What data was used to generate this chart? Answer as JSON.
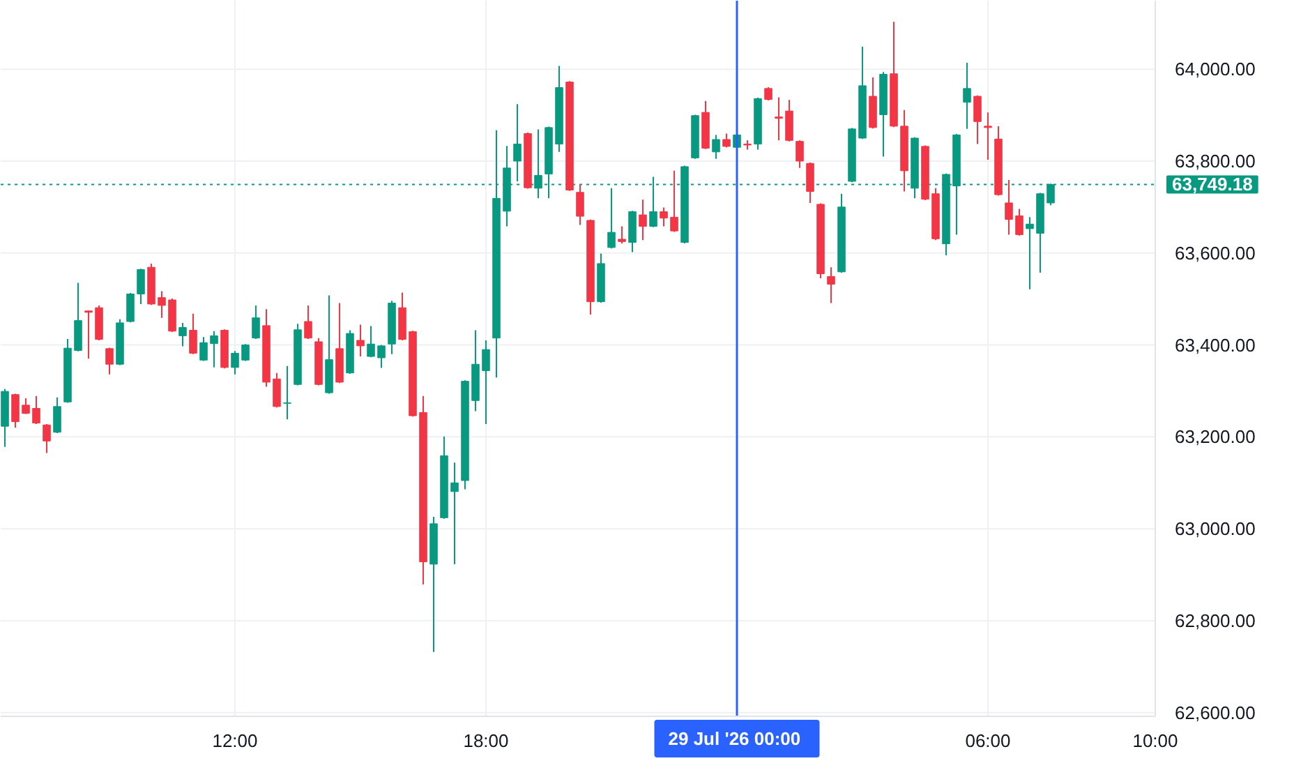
{
  "chart_data": {
    "type": "candlestick",
    "x": [
      "2026-07-28T06:30",
      "2026-07-28T06:45",
      "2026-07-28T07:00",
      "2026-07-28T07:15",
      "2026-07-28T07:30",
      "2026-07-28T07:45",
      "2026-07-28T08:00",
      "2026-07-28T08:15",
      "2026-07-28T08:30",
      "2026-07-28T08:45",
      "2026-07-28T09:00",
      "2026-07-28T09:15",
      "2026-07-28T09:30",
      "2026-07-28T09:45",
      "2026-07-28T10:00",
      "2026-07-28T10:15",
      "2026-07-28T10:30",
      "2026-07-28T10:45",
      "2026-07-28T11:00",
      "2026-07-28T11:15",
      "2026-07-28T11:30",
      "2026-07-28T11:45",
      "2026-07-28T12:00",
      "2026-07-28T12:15",
      "2026-07-28T12:30",
      "2026-07-28T12:45",
      "2026-07-28T13:00",
      "2026-07-28T13:15",
      "2026-07-28T13:30",
      "2026-07-28T13:45",
      "2026-07-28T14:00",
      "2026-07-28T14:15",
      "2026-07-28T14:30",
      "2026-07-28T14:45",
      "2026-07-28T15:00",
      "2026-07-28T15:15",
      "2026-07-28T15:30",
      "2026-07-28T15:45",
      "2026-07-28T16:00",
      "2026-07-28T16:15",
      "2026-07-28T16:30",
      "2026-07-28T16:45",
      "2026-07-28T17:00",
      "2026-07-28T17:15",
      "2026-07-28T17:30",
      "2026-07-28T17:45",
      "2026-07-28T18:00",
      "2026-07-28T18:15",
      "2026-07-28T18:30",
      "2026-07-28T18:45",
      "2026-07-28T19:00",
      "2026-07-28T19:15",
      "2026-07-28T19:30",
      "2026-07-28T19:45",
      "2026-07-28T20:00",
      "2026-07-28T20:15",
      "2026-07-28T20:30",
      "2026-07-28T20:45",
      "2026-07-28T21:00",
      "2026-07-28T21:15",
      "2026-07-28T21:30",
      "2026-07-28T21:45",
      "2026-07-28T22:00",
      "2026-07-28T22:15",
      "2026-07-28T22:30",
      "2026-07-28T22:45",
      "2026-07-28T23:00",
      "2026-07-28T23:15",
      "2026-07-28T23:30",
      "2026-07-28T23:45",
      "2026-07-29T00:00",
      "2026-07-29T00:15",
      "2026-07-29T00:30",
      "2026-07-29T00:45",
      "2026-07-29T01:00",
      "2026-07-29T01:15",
      "2026-07-29T01:30",
      "2026-07-29T01:45",
      "2026-07-29T02:00",
      "2026-07-29T02:15",
      "2026-07-29T02:30",
      "2026-07-29T02:45",
      "2026-07-29T03:00",
      "2026-07-29T03:15",
      "2026-07-29T03:30",
      "2026-07-29T03:45",
      "2026-07-29T04:00",
      "2026-07-29T04:15",
      "2026-07-29T04:30",
      "2026-07-29T04:45",
      "2026-07-29T05:00",
      "2026-07-29T05:15",
      "2026-07-29T05:30",
      "2026-07-29T05:45",
      "2026-07-29T06:00",
      "2026-07-29T06:15",
      "2026-07-29T06:30",
      "2026-07-29T06:45",
      "2026-07-29T07:00",
      "2026-07-29T07:15",
      "2026-07-29T07:30"
    ],
    "ohlc": [
      [
        63223,
        63304,
        63178,
        63299
      ],
      [
        63292,
        63294,
        63220,
        63233
      ],
      [
        63269,
        63284,
        63250,
        63251
      ],
      [
        63262,
        63289,
        63228,
        63230
      ],
      [
        63226,
        63228,
        63165,
        63191
      ],
      [
        63210,
        63286,
        63208,
        63266
      ],
      [
        63276,
        63413,
        63274,
        63393
      ],
      [
        63388,
        63535,
        63386,
        63453
      ],
      [
        63474,
        63475,
        63370,
        63471
      ],
      [
        63481,
        63486,
        63410,
        63412
      ],
      [
        63392,
        63394,
        63336,
        63358
      ],
      [
        63358,
        63456,
        63356,
        63448
      ],
      [
        63451,
        63513,
        63449,
        63511
      ],
      [
        63511,
        63566,
        63489,
        63564
      ],
      [
        63569,
        63577,
        63487,
        63489
      ],
      [
        63503,
        63517,
        63459,
        63486
      ],
      [
        63498,
        63501,
        63428,
        63430
      ],
      [
        63420,
        63448,
        63397,
        63438
      ],
      [
        63432,
        63468,
        63380,
        63382
      ],
      [
        63367,
        63417,
        63365,
        63405
      ],
      [
        63403,
        63430,
        63351,
        63420
      ],
      [
        63432,
        63434,
        63349,
        63351
      ],
      [
        63351,
        63387,
        63336,
        63382
      ],
      [
        63367,
        63402,
        63365,
        63400
      ],
      [
        63415,
        63486,
        63413,
        63459
      ],
      [
        63442,
        63478,
        63309,
        63319
      ],
      [
        63326,
        63339,
        63264,
        63266
      ],
      [
        63273,
        63354,
        63238,
        63274
      ],
      [
        63314,
        63446,
        63312,
        63433
      ],
      [
        63451,
        63486,
        63413,
        63415
      ],
      [
        63407,
        63415,
        63312,
        63314
      ],
      [
        63296,
        63508,
        63294,
        63368
      ],
      [
        63392,
        63491,
        63317,
        63319
      ],
      [
        63339,
        63432,
        63337,
        63425
      ],
      [
        63410,
        63444,
        63375,
        63398
      ],
      [
        63375,
        63441,
        63373,
        63402
      ],
      [
        63372,
        63400,
        63350,
        63398
      ],
      [
        63402,
        63496,
        63380,
        63491
      ],
      [
        63481,
        63514,
        63410,
        63412
      ],
      [
        63429,
        63431,
        63244,
        63246
      ],
      [
        63253,
        63289,
        62879,
        62928
      ],
      [
        62923,
        63026,
        62732,
        63011
      ],
      [
        63024,
        63201,
        63022,
        63159
      ],
      [
        63081,
        63144,
        62923,
        63100
      ],
      [
        63105,
        63323,
        63086,
        63321
      ],
      [
        63279,
        63432,
        63256,
        63358
      ],
      [
        63344,
        63410,
        63228,
        63390
      ],
      [
        63415,
        63867,
        63329,
        63719
      ],
      [
        63691,
        63833,
        63658,
        63785
      ],
      [
        63800,
        63924,
        63756,
        63837
      ],
      [
        63860,
        63862,
        63740,
        63742
      ],
      [
        63741,
        63869,
        63719,
        63769
      ],
      [
        63772,
        63875,
        63719,
        63873
      ],
      [
        63837,
        64007,
        63820,
        63960
      ],
      [
        63972,
        63974,
        63735,
        63737
      ],
      [
        63732,
        63749,
        63661,
        63680
      ],
      [
        63671,
        63673,
        63466,
        63494
      ],
      [
        63494,
        63599,
        63492,
        63577
      ],
      [
        63612,
        63741,
        63610,
        63645
      ],
      [
        63630,
        63658,
        63621,
        63625
      ],
      [
        63623,
        63692,
        63602,
        63690
      ],
      [
        63683,
        63716,
        63628,
        63658
      ],
      [
        63658,
        63766,
        63656,
        63690
      ],
      [
        63690,
        63699,
        63658,
        63676
      ],
      [
        63678,
        63779,
        63646,
        63648
      ],
      [
        63623,
        63790,
        63621,
        63788
      ],
      [
        63807,
        63901,
        63805,
        63899
      ],
      [
        63906,
        63931,
        63826,
        63828
      ],
      [
        63820,
        63857,
        63805,
        63847
      ],
      [
        63847,
        63860,
        63830,
        63832
      ],
      [
        63830,
        63860,
        63828,
        63857
      ],
      [
        63837,
        63845,
        63825,
        63835
      ],
      [
        63837,
        63938,
        63825,
        63936
      ],
      [
        63958,
        63961,
        63932,
        63934
      ],
      [
        63896,
        63939,
        63845,
        63893
      ],
      [
        63909,
        63933,
        63843,
        63845
      ],
      [
        63843,
        63845,
        63785,
        63800
      ],
      [
        63795,
        63797,
        63709,
        63734
      ],
      [
        63706,
        63708,
        63545,
        63555
      ],
      [
        63549,
        63569,
        63491,
        63532
      ],
      [
        63559,
        63729,
        63557,
        63700
      ],
      [
        63756,
        63872,
        63754,
        63870
      ],
      [
        63850,
        64049,
        63848,
        63964
      ],
      [
        63941,
        63982,
        63871,
        63873
      ],
      [
        63901,
        63994,
        63810,
        63989
      ],
      [
        63990,
        64103,
        63874,
        63876
      ],
      [
        63876,
        63911,
        63734,
        63779
      ],
      [
        63741,
        63852,
        63719,
        63850
      ],
      [
        63832,
        63834,
        63715,
        63717
      ],
      [
        63729,
        63741,
        63628,
        63631
      ],
      [
        63620,
        63773,
        63595,
        63771
      ],
      [
        63746,
        63859,
        63640,
        63857
      ],
      [
        63928,
        64014,
        63870,
        63958
      ],
      [
        63941,
        63943,
        63837,
        63886
      ],
      [
        63876,
        63906,
        63803,
        63873
      ],
      [
        63848,
        63876,
        63725,
        63727
      ],
      [
        63709,
        63759,
        63640,
        63673
      ],
      [
        63681,
        63696,
        63638,
        63640
      ],
      [
        63653,
        63678,
        63521,
        63663
      ],
      [
        63643,
        63731,
        63557,
        63729
      ],
      [
        63709,
        63751,
        63704,
        63749.18
      ]
    ],
    "colors": [
      "#089981",
      "#f23645",
      "#f23645",
      "#f23645",
      "#f23645",
      "#089981",
      "#089981",
      "#089981",
      "#f23645",
      "#f23645",
      "#f23645",
      "#089981",
      "#089981",
      "#089981",
      "#f23645",
      "#f23645",
      "#f23645",
      "#089981",
      "#f23645",
      "#089981",
      "#089981",
      "#f23645",
      "#089981",
      "#089981",
      "#089981",
      "#f23645",
      "#f23645",
      "#089981",
      "#089981",
      "#f23645",
      "#f23645",
      "#089981",
      "#f23645",
      "#089981",
      "#f23645",
      "#089981",
      "#089981",
      "#089981",
      "#f23645",
      "#f23645",
      "#f23645",
      "#089981",
      "#089981",
      "#089981",
      "#089981",
      "#089981",
      "#089981",
      "#089981",
      "#089981",
      "#089981",
      "#f23645",
      "#089981",
      "#089981",
      "#089981",
      "#f23645",
      "#f23645",
      "#f23645",
      "#089981",
      "#089981",
      "#f23645",
      "#089981",
      "#f23645",
      "#089981",
      "#f23645",
      "#f23645",
      "#089981",
      "#089981",
      "#f23645",
      "#089981",
      "#f23645",
      "#089981",
      "#f23645",
      "#089981",
      "#f23645",
      "#f23645",
      "#f23645",
      "#f23645",
      "#f23645",
      "#f23645",
      "#f23645",
      "#089981",
      "#089981",
      "#089981",
      "#f23645",
      "#089981",
      "#f23645",
      "#f23645",
      "#089981",
      "#f23645",
      "#f23645",
      "#089981",
      "#089981",
      "#089981",
      "#f23645",
      "#f23645",
      "#f23645",
      "#f23645",
      "#f23645",
      "#089981",
      "#089981",
      "#089981"
    ],
    "xlim": [
      "2026-07-28T06:24",
      "2026-07-29T10:00"
    ],
    "xticks": [
      {
        "value": "2026-07-28T12:00",
        "label": "12:00"
      },
      {
        "value": "2026-07-28T18:00",
        "label": "18:00"
      },
      {
        "value": "2026-07-29T06:00",
        "label": "06:00"
      },
      {
        "value": "2026-07-29T10:00",
        "label": "10:00"
      }
    ],
    "ylim": [
      62592,
      64149
    ],
    "yticks": [
      {
        "value": 62600,
        "label": "62,600.00"
      },
      {
        "value": 62800,
        "label": "62,800.00"
      },
      {
        "value": 63000,
        "label": "63,000.00"
      },
      {
        "value": 63200,
        "label": "63,200.00"
      },
      {
        "value": 63400,
        "label": "63,400.00"
      },
      {
        "value": 63600,
        "label": "63,600.00"
      },
      {
        "value": 63800,
        "label": "63,800.00"
      },
      {
        "value": 64000,
        "label": "64,000.00"
      }
    ],
    "grid": true,
    "ref_lines": [
      {
        "axis": "y",
        "value": 63749.18,
        "label": "63,749.18",
        "color": "#089981",
        "line_style": "dotted"
      },
      {
        "axis": "x",
        "value": "2026-07-29T00:00",
        "label": "29 Jul '26  00:00",
        "color": "#2962ff",
        "line_style": "solid"
      }
    ]
  }
}
